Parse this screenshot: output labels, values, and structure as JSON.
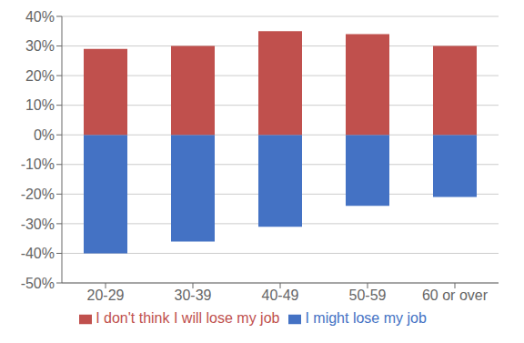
{
  "chart_data": {
    "type": "bar",
    "categories": [
      "20-29",
      "30-39",
      "40-49",
      "50-59",
      "60 or over"
    ],
    "series": [
      {
        "name": "I might lose my job",
        "color": "#4472C4",
        "values": [
          -40,
          -36,
          -31,
          -24,
          -21
        ]
      },
      {
        "name": "I don't think I will lose my job",
        "color": "#C0504D",
        "values": [
          29,
          30,
          35,
          34,
          30
        ]
      }
    ],
    "ylim": [
      -50,
      40
    ],
    "yticks": [
      {
        "value": -50,
        "label": "-50%"
      },
      {
        "value": -40,
        "label": "-40%"
      },
      {
        "value": -30,
        "label": "-30%"
      },
      {
        "value": -20,
        "label": "-20%"
      },
      {
        "value": -10,
        "label": "-10%"
      },
      {
        "value": 0,
        "label": "0%"
      },
      {
        "value": 10,
        "label": "10%"
      },
      {
        "value": 20,
        "label": "20%"
      },
      {
        "value": 30,
        "label": "30%"
      },
      {
        "value": 40,
        "label": "40%"
      }
    ],
    "grid": true,
    "legend": "bottom",
    "stacked": true
  }
}
